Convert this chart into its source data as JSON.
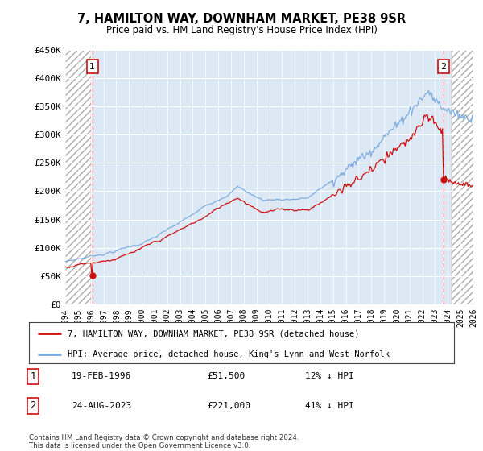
{
  "title": "7, HAMILTON WAY, DOWNHAM MARKET, PE38 9SR",
  "subtitle": "Price paid vs. HM Land Registry's House Price Index (HPI)",
  "ylim": [
    0,
    450000
  ],
  "yticks": [
    0,
    50000,
    100000,
    150000,
    200000,
    250000,
    300000,
    350000,
    400000,
    450000
  ],
  "ytick_labels": [
    "£0",
    "£50K",
    "£100K",
    "£150K",
    "£200K",
    "£250K",
    "£300K",
    "£350K",
    "£400K",
    "£450K"
  ],
  "hpi_color": "#7aaadd",
  "price_color": "#cc1111",
  "annotation_color": "#cc1111",
  "dashed_line_color": "#dd4444",
  "background_color": "#ffffff",
  "plot_bg_color": "#dde8f5",
  "legend_label_price": "7, HAMILTON WAY, DOWNHAM MARKET, PE38 9SR (detached house)",
  "legend_label_hpi": "HPI: Average price, detached house, King's Lynn and West Norfolk",
  "transaction1_date": "19-FEB-1996",
  "transaction1_price": "£51,500",
  "transaction1_pct": "12% ↓ HPI",
  "transaction1_year": 1996.13,
  "transaction1_value": 51500,
  "transaction2_date": "24-AUG-2023",
  "transaction2_price": "£221,000",
  "transaction2_pct": "41% ↓ HPI",
  "transaction2_year": 2023.64,
  "transaction2_value": 221000,
  "footer": "Contains HM Land Registry data © Crown copyright and database right 2024.\nThis data is licensed under the Open Government Licence v3.0.",
  "xmin": 1994.0,
  "xmax": 2026.0,
  "hatch_left_end": 1996.0,
  "hatch_right_start": 2024.3
}
